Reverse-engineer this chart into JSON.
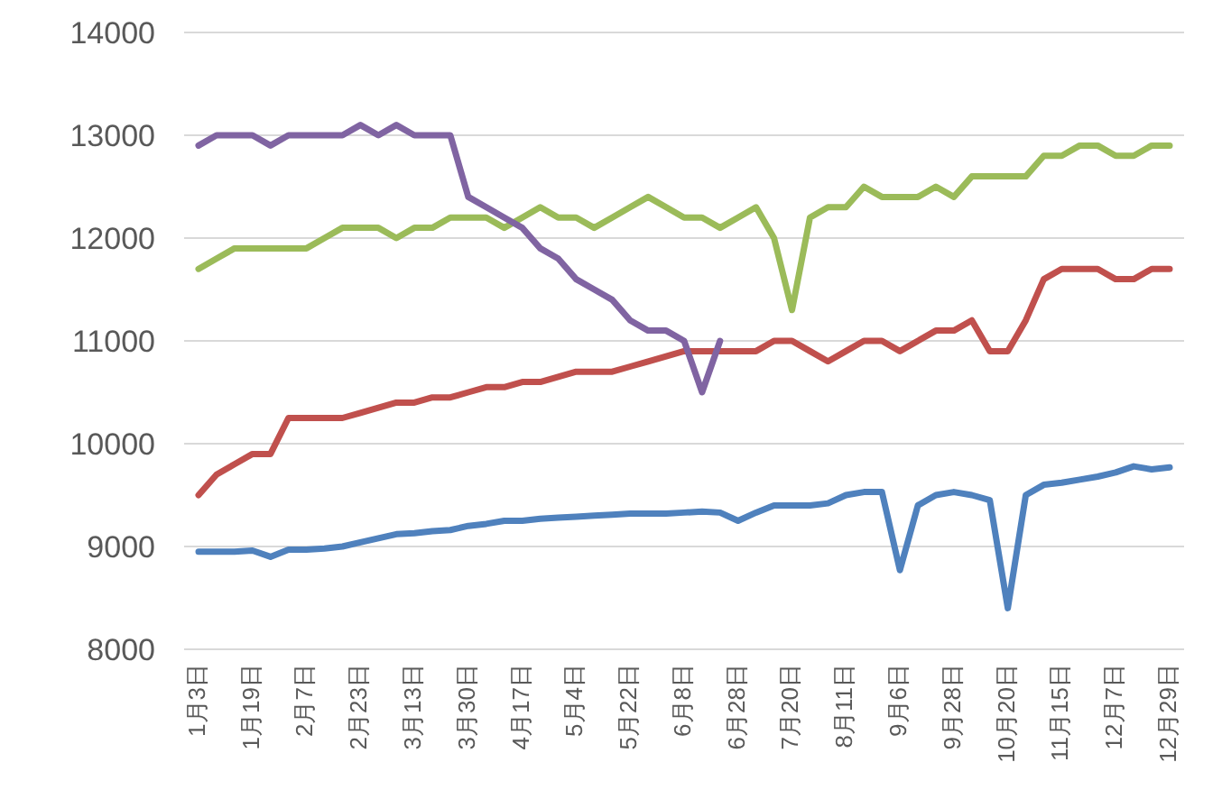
{
  "chart_data": {
    "type": "line",
    "categories": [
      "1月3日",
      null,
      null,
      "1月19日",
      null,
      null,
      "2月7日",
      null,
      null,
      "2月23日",
      null,
      null,
      "3月13日",
      null,
      null,
      "3月30日",
      null,
      null,
      "4月17日",
      null,
      null,
      "5月4日",
      null,
      null,
      "5月22日",
      null,
      null,
      "6月8日",
      null,
      null,
      "6月28日",
      null,
      null,
      "7月20日",
      null,
      null,
      "8月11日",
      null,
      null,
      "9月6日",
      null,
      null,
      "9月28日",
      null,
      null,
      "10月20日",
      null,
      null,
      "11月15日",
      null,
      null,
      "12月7日",
      null,
      null,
      "12月29日"
    ],
    "ylim": [
      8000,
      14000
    ],
    "yticks": [
      8000,
      9000,
      10000,
      11000,
      12000,
      13000,
      14000
    ],
    "grid": "y",
    "series": [
      {
        "color": "#4f81bd",
        "values": [
          8950,
          8950,
          8950,
          8960,
          8900,
          8970,
          8970,
          8980,
          9000,
          9040,
          9080,
          9120,
          9130,
          9150,
          9160,
          9200,
          9220,
          9250,
          9250,
          9270,
          9280,
          9290,
          9300,
          9310,
          9320,
          9320,
          9320,
          9330,
          9340,
          9330,
          9250,
          9330,
          9400,
          9400,
          9400,
          9420,
          9500,
          9530,
          9530,
          8770,
          9400,
          9500,
          9530,
          9500,
          9450,
          8400,
          9500,
          9600,
          9620,
          9650,
          9680,
          9720,
          9780,
          9750,
          9770
        ]
      },
      {
        "color": "#c0504d",
        "values": [
          9500,
          9700,
          9800,
          9900,
          9900,
          10250,
          10250,
          10250,
          10250,
          10300,
          10350,
          10400,
          10400,
          10450,
          10450,
          10500,
          10550,
          10550,
          10600,
          10600,
          10650,
          10700,
          10700,
          10700,
          10750,
          10800,
          10850,
          10900,
          10900,
          10900,
          10900,
          10900,
          11000,
          11000,
          10900,
          10800,
          10900,
          11000,
          11000,
          10900,
          11000,
          11100,
          11100,
          11200,
          10900,
          10900,
          11200,
          11600,
          11700,
          11700,
          11700,
          11600,
          11600,
          11700,
          11700
        ]
      },
      {
        "color": "#9bbb59",
        "values": [
          11700,
          11800,
          11900,
          11900,
          11900,
          11900,
          11900,
          12000,
          12100,
          12100,
          12100,
          12000,
          12100,
          12100,
          12200,
          12200,
          12200,
          12100,
          12200,
          12300,
          12200,
          12200,
          12100,
          12200,
          12300,
          12400,
          12300,
          12200,
          12200,
          12100,
          12200,
          12300,
          12000,
          11300,
          12200,
          12300,
          12300,
          12500,
          12400,
          12400,
          12400,
          12500,
          12400,
          12600,
          12600,
          12600,
          12600,
          12800,
          12800,
          12900,
          12900,
          12800,
          12800,
          12900,
          12900
        ]
      },
      {
        "color": "#8064a2",
        "values": [
          12900,
          13000,
          13000,
          13000,
          12900,
          13000,
          13000,
          13000,
          13000,
          13100,
          13000,
          13100,
          13000,
          13000,
          13000,
          12400,
          12300,
          12200,
          12100,
          11900,
          11800,
          11600,
          11500,
          11400,
          11200,
          11100,
          11100,
          11000,
          10500,
          11000,
          null,
          null,
          null,
          null,
          null,
          null,
          null,
          null,
          null,
          null,
          null,
          null,
          null,
          null,
          null,
          null,
          null,
          null,
          null,
          null,
          null,
          null,
          null,
          null,
          null
        ]
      }
    ]
  }
}
